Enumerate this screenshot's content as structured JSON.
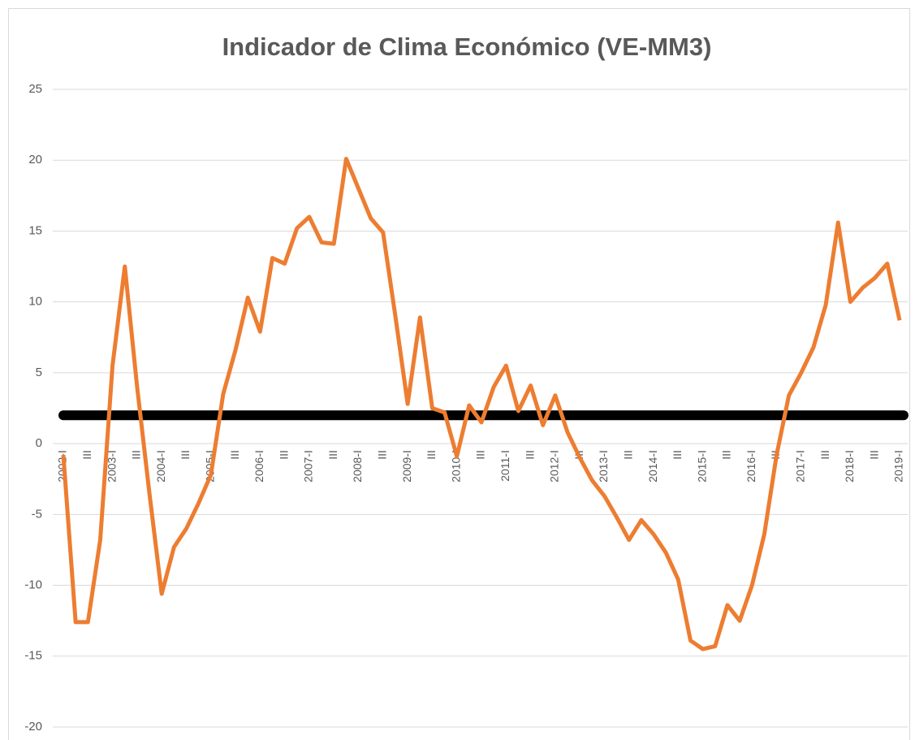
{
  "chart_data": {
    "type": "line",
    "title": "Indicador de Clima Económico (VE-MM3)",
    "categories": [
      "2002-I",
      null,
      "III",
      null,
      "2003-I",
      null,
      "III",
      null,
      "2004-I",
      null,
      "III",
      null,
      "2005-I",
      null,
      "III",
      null,
      "2006-I",
      null,
      "III",
      null,
      "2007-I",
      null,
      "III",
      null,
      "2008-I",
      null,
      "III",
      null,
      "2009-I",
      null,
      "III",
      null,
      "2010-I",
      null,
      "III",
      null,
      "2011-I",
      null,
      "III",
      null,
      "2012-I",
      null,
      "III",
      null,
      "2013-I",
      null,
      "III",
      null,
      "2014-I",
      null,
      "III",
      null,
      "2015-I",
      null,
      "III",
      null,
      "2016-I",
      null,
      "III",
      null,
      "2017-I",
      null,
      "III",
      null,
      "2018-I",
      null,
      "III",
      null,
      "2019-I"
    ],
    "series": [
      {
        "color": "#ed7d31",
        "values": [
          -0.8,
          -12.6,
          -12.6,
          -6.8,
          5.5,
          12.5,
          4,
          -3.5,
          -10.6,
          -7.3,
          -6,
          -4.2,
          -2.2,
          3.5,
          6.6,
          10.3,
          7.9,
          13.1,
          12.7,
          15.2,
          16,
          14.2,
          14.1,
          20.1,
          18,
          15.9,
          14.9,
          9,
          2.8,
          8.9,
          2.5,
          2.2,
          -0.9,
          2.7,
          1.5,
          4,
          5.5,
          2.3,
          4.1,
          1.3,
          3.4,
          0.8,
          -1,
          -2.6,
          -3.7,
          -5.2,
          -6.8,
          -5.4,
          -6.4,
          -7.7,
          -9.6,
          -13.9,
          -14.5,
          -14.3,
          -11.4,
          -12.5,
          -10,
          -6.4,
          -0.8,
          3.4,
          5,
          6.8,
          9.8,
          15.6,
          10,
          11,
          11.7,
          12.7,
          8.7
        ]
      }
    ],
    "reference_line": {
      "value": 2,
      "color": "#000000"
    },
    "ylim": [
      -20,
      25
    ],
    "yticks": [
      -20,
      -15,
      -10,
      -5,
      0,
      5,
      10,
      15,
      20,
      25
    ],
    "grid": true
  }
}
